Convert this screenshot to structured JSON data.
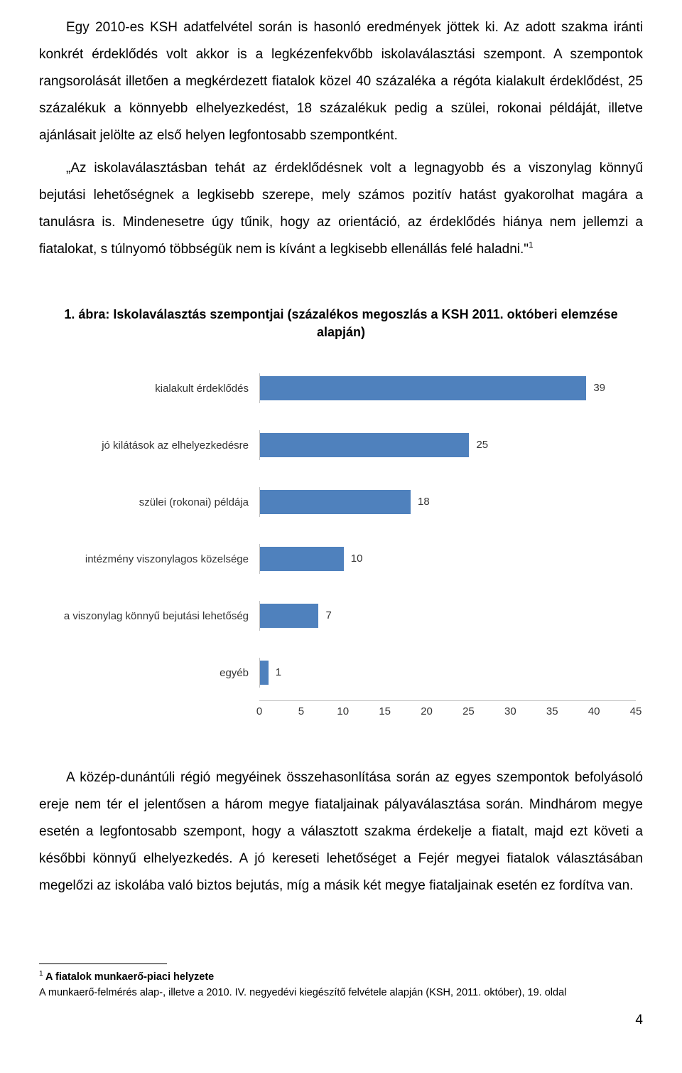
{
  "paragraphs": {
    "p1": "Egy 2010-es KSH adatfelvétel során is hasonló eredmények jöttek ki. Az adott szakma iránti konkrét érdeklődés volt akkor is a legkézenfekvőbb iskolaválasztási szempont. A szempontok rangsorolását illetően a megkérdezett fiatalok közel 40 százaléka a régóta kialakult érdeklődést, 25 százalékuk a könnyebb elhelyezkedést, 18 százalékuk pedig a szülei, rokonai példáját, illetve ajánlásait jelölte az első helyen legfontosabb szempontként.",
    "p2a": "„Az iskolaválasztásban tehát az érdeklődésnek volt a legnagyobb és a viszonylag könnyű bejutási lehetőségnek a legkisebb szerepe, mely számos pozitív hatást gyakorolhat magára a tanulásra is. Mindenesetre úgy tűnik, hogy az orientáció, az érdeklődés hiánya nem jellemzi a fiatalokat, s túlnyomó többségük nem is kívánt a legkisebb ellenállás felé haladni.\"",
    "p2_sup": "1",
    "p3": "A közép-dunántúli régió megyéinek összehasonlítása során az egyes szempontok befolyásoló ereje nem tér el jelentősen a három megye fiataljainak pályaválasztása során. Mindhárom megye esetén a legfontosabb szempont, hogy a választott szakma érdekelje a fiatalt, majd ezt követi a későbbi könnyű elhelyezkedés. A jó kereseti lehetőséget a Fejér megyei fiatalok választásában megelőzi az iskolába való biztos bejutás, míg a másik két megye fiataljainak esetén ez fordítva van."
  },
  "chart": {
    "title": "1. ábra: Iskolaválasztás szempontjai (százalékos megoszlás a KSH 2011. októberi elemzése alapján)",
    "bar_color": "#4f81bd",
    "grid_color": "#bfbfbf",
    "label_color": "#333333",
    "background_color": "#ffffff",
    "xmax": 45,
    "categories": [
      {
        "label": "kialakult érdeklődés",
        "value": 39
      },
      {
        "label": "jó kilátások az elhelyezkedésre",
        "value": 25
      },
      {
        "label": "szülei (rokonai) példája",
        "value": 18
      },
      {
        "label": "intézmény viszonylagos közelsége",
        "value": 10
      },
      {
        "label": "a viszonylag könnyű bejutási lehetőség",
        "value": 7
      },
      {
        "label": "egyéb",
        "value": 1
      }
    ],
    "xticks": [
      0,
      5,
      10,
      15,
      20,
      25,
      30,
      35,
      40,
      45
    ]
  },
  "footnote": {
    "sup": "1",
    "bold": " A fiatalok munkaerő-piaci helyzete",
    "line2": "A munkaerő-felmérés alap-, illetve a 2010. IV. negyedévi kiegészítő felvétele alapján (KSH, 2011. október), 19. oldal"
  },
  "page_number": "4"
}
